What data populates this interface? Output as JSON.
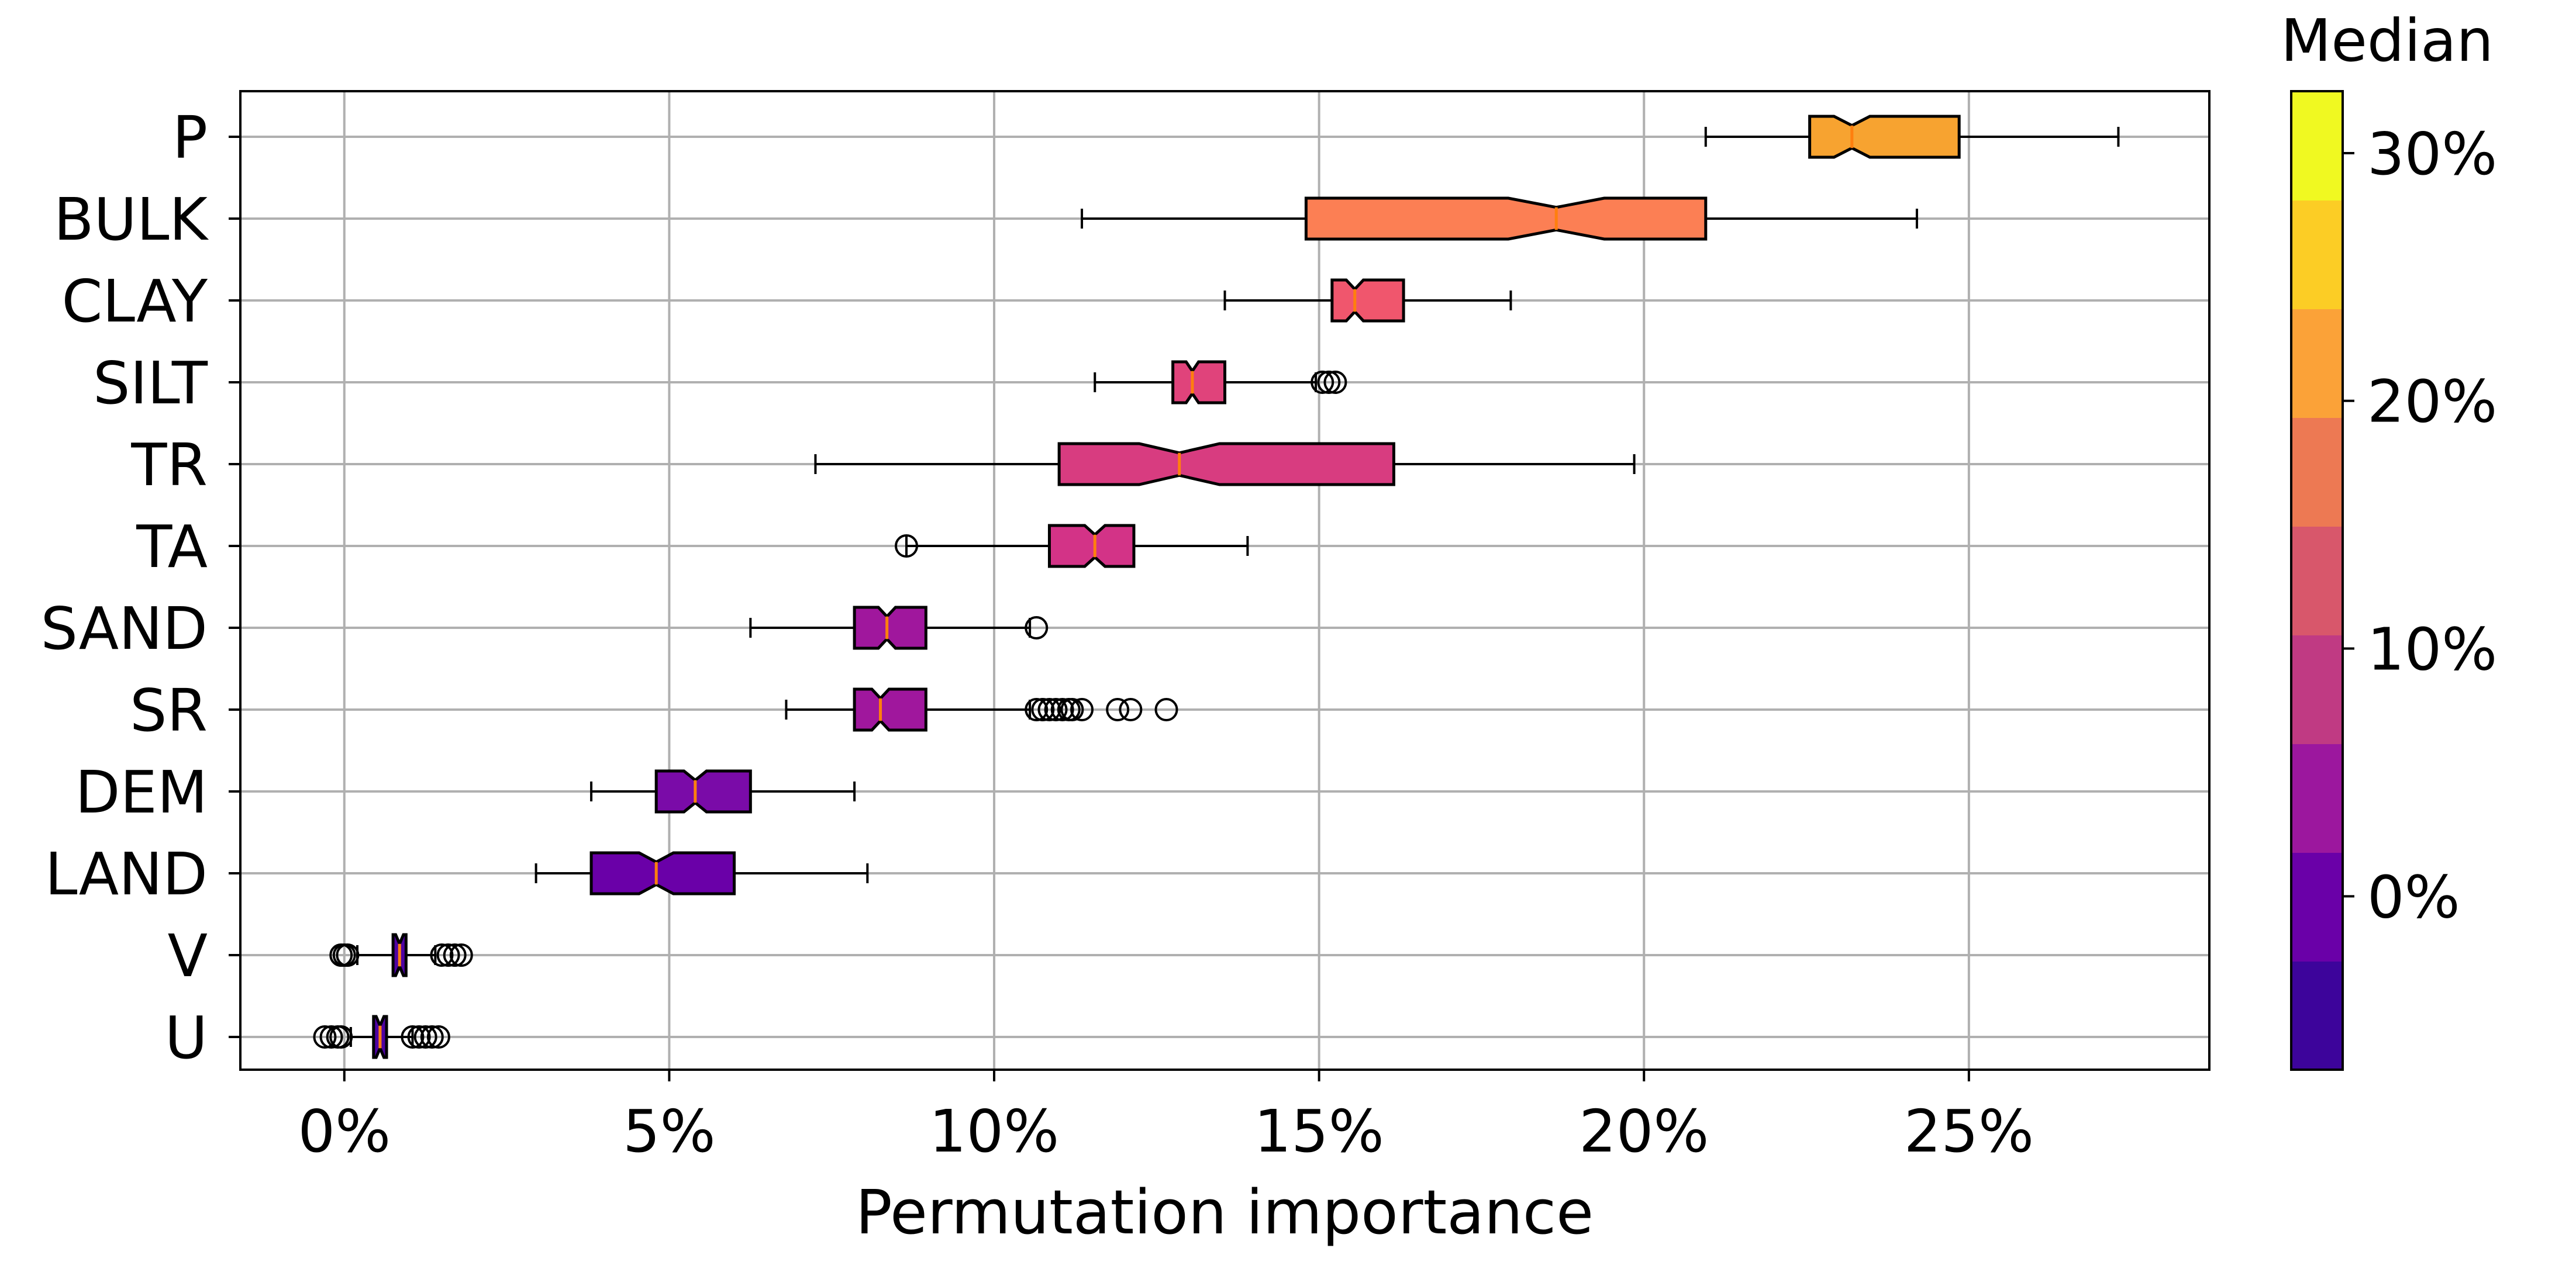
{
  "chart_data": {
    "type": "boxplot",
    "orientation": "horizontal",
    "notched": true,
    "xlabel": "Permutation importance",
    "ylabel": "",
    "xlim": [
      -0.016,
      0.287
    ],
    "xticks": [
      0,
      0.05,
      0.1,
      0.15,
      0.2,
      0.25
    ],
    "xtick_labels": [
      "0%",
      "5%",
      "10%",
      "15%",
      "20%",
      "25%"
    ],
    "grid": true,
    "colorbar": {
      "title": "Median",
      "range": [
        -0.07,
        0.325
      ],
      "ticks": [
        0,
        0.1,
        0.2,
        0.3
      ],
      "tick_labels": [
        "0%",
        "10%",
        "20%",
        "30%"
      ],
      "colors": [
        "#3d049b",
        "#6a00a8",
        "#9c179e",
        "#c03a83",
        "#d8576b",
        "#ed7953",
        "#fba238",
        "#fccd25",
        "#f0f921"
      ]
    },
    "series": [
      {
        "name": "P",
        "q1": 0.2255,
        "median": 0.232,
        "q3": 0.2485,
        "whisker_low": 0.2095,
        "whisker_high": 0.273,
        "outliers": [],
        "color": "#f7a330"
      },
      {
        "name": "BULK",
        "q1": 0.148,
        "median": 0.1865,
        "q3": 0.2095,
        "whisker_low": 0.1135,
        "whisker_high": 0.242,
        "outliers": [],
        "color": "#fc7f54"
      },
      {
        "name": "CLAY",
        "q1": 0.152,
        "median": 0.1555,
        "q3": 0.163,
        "whisker_low": 0.1355,
        "whisker_high": 0.1795,
        "outliers": [],
        "color": "#f0566d"
      },
      {
        "name": "SILT",
        "q1": 0.1275,
        "median": 0.1305,
        "q3": 0.1355,
        "whisker_low": 0.1155,
        "whisker_high": 0.1495,
        "outliers": [
          0.1505,
          0.1515,
          0.1525
        ],
        "color": "#e0437b"
      },
      {
        "name": "TR",
        "q1": 0.11,
        "median": 0.1285,
        "q3": 0.1615,
        "whisker_low": 0.0725,
        "whisker_high": 0.1985,
        "outliers": [],
        "color": "#d83c80"
      },
      {
        "name": "TA",
        "q1": 0.1085,
        "median": 0.1155,
        "q3": 0.1215,
        "whisker_low": 0.0865,
        "whisker_high": 0.139,
        "outliers": [
          0.0865
        ],
        "color": "#d33387"
      },
      {
        "name": "SAND",
        "q1": 0.0785,
        "median": 0.0835,
        "q3": 0.0895,
        "whisker_low": 0.0625,
        "whisker_high": 0.1055,
        "outliers": [
          0.1065
        ],
        "color": "#a0179d"
      },
      {
        "name": "SR",
        "q1": 0.0785,
        "median": 0.0825,
        "q3": 0.0895,
        "whisker_low": 0.068,
        "whisker_high": 0.1055,
        "outliers": [
          0.1065,
          0.1075,
          0.1085,
          0.1095,
          0.1105,
          0.1115,
          0.112,
          0.1135,
          0.119,
          0.121,
          0.1265
        ],
        "color": "#a0179d"
      },
      {
        "name": "DEM",
        "q1": 0.048,
        "median": 0.054,
        "q3": 0.0625,
        "whisker_low": 0.038,
        "whisker_high": 0.0785,
        "outliers": [],
        "color": "#7a0ba8"
      },
      {
        "name": "LAND",
        "q1": 0.038,
        "median": 0.048,
        "q3": 0.06,
        "whisker_low": 0.0295,
        "whisker_high": 0.0805,
        "outliers": [],
        "color": "#6a00a8"
      },
      {
        "name": "V",
        "q1": 0.0075,
        "median": 0.0085,
        "q3": 0.0095,
        "whisker_low": 0.002,
        "whisker_high": 0.014,
        "outliers": [
          -0.0005,
          0.0,
          0.0005,
          0.015,
          0.016,
          0.017,
          0.018
        ],
        "color": "#4e02a2"
      },
      {
        "name": "U",
        "q1": 0.0045,
        "median": 0.0055,
        "q3": 0.0065,
        "whisker_low": 0.001,
        "whisker_high": 0.0105,
        "outliers": [
          -0.003,
          -0.002,
          -0.001,
          -0.0005,
          0.0105,
          0.0115,
          0.0125,
          0.0135,
          0.0145
        ],
        "color": "#4e02a2"
      }
    ]
  }
}
